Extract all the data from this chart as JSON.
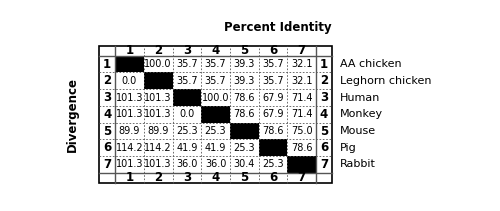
{
  "title": "Percent Identity",
  "ylabel": "Divergence",
  "col_headers": [
    "",
    "1",
    "2",
    "3",
    "4",
    "5",
    "6",
    "7",
    ""
  ],
  "species": [
    "AA chicken",
    "Leghorn chicken",
    "Human",
    "Monkey",
    "Mouse",
    "Pig",
    "Rabbit"
  ],
  "table_data": [
    [
      "1",
      "BLACK",
      "100.0",
      "35.7",
      "35.7",
      "39.3",
      "35.7",
      "32.1",
      "1"
    ],
    [
      "2",
      "0.0",
      "BLACK",
      "35.7",
      "35.7",
      "39.3",
      "35.7",
      "32.1",
      "2"
    ],
    [
      "3",
      "101.3",
      "101.3",
      "BLACK",
      "100.0",
      "78.6",
      "67.9",
      "71.4",
      "3"
    ],
    [
      "4",
      "101.3",
      "101.3",
      "0.0",
      "BLACK",
      "78.6",
      "67.9",
      "71.4",
      "4"
    ],
    [
      "5",
      "89.9",
      "89.9",
      "25.3",
      "25.3",
      "BLACK",
      "78.6",
      "75.0",
      "5"
    ],
    [
      "6",
      "114.2",
      "114.2",
      "41.9",
      "41.9",
      "25.3",
      "BLACK",
      "78.6",
      "6"
    ],
    [
      "7",
      "101.3",
      "101.3",
      "36.0",
      "36.0",
      "30.4",
      "25.3",
      "BLACK",
      "7"
    ]
  ],
  "black_color": "#000000",
  "white_color": "#ffffff",
  "outer_border_color": "#000000",
  "inner_border_color": "#aaaaaa",
  "text_color": "#000000",
  "title_fontsize": 8.5,
  "header_fontsize": 8.5,
  "label_fontsize": 8.5,
  "data_fontsize": 7.0,
  "species_fontsize": 8.0,
  "ylabel_fontsize": 8.5
}
